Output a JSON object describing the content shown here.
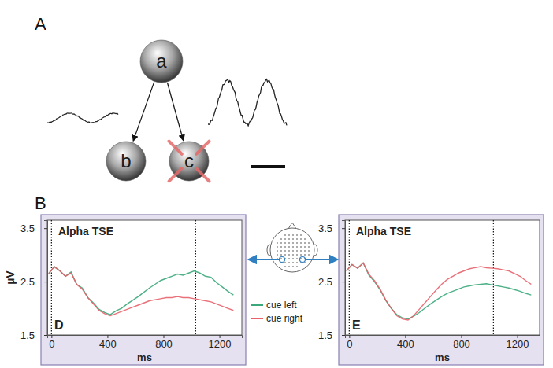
{
  "panel_labels": [
    "A",
    "B"
  ],
  "diagram": {
    "nodes": [
      {
        "label": "a"
      },
      {
        "label": "b"
      },
      {
        "label": "c",
        "lesioned": true
      }
    ],
    "edges": [
      [
        0,
        1
      ],
      [
        0,
        2
      ]
    ]
  },
  "chart_data": [
    {
      "type": "line",
      "label": "D",
      "title": "Alpha TSE",
      "xlabel": "ms",
      "ylabel": "µV",
      "x": [
        -20,
        20,
        60,
        100,
        140,
        180,
        220,
        260,
        300,
        340,
        380,
        420,
        460,
        500,
        540,
        580,
        620,
        660,
        700,
        740,
        780,
        820,
        860,
        900,
        940,
        980,
        1020,
        1060,
        1100,
        1140,
        1180,
        1220,
        1260,
        1300
      ],
      "series": [
        {
          "name": "cue left",
          "color": "#3aa87a",
          "values": [
            2.65,
            2.78,
            2.7,
            2.6,
            2.68,
            2.45,
            2.38,
            2.2,
            2.1,
            1.98,
            1.92,
            1.88,
            1.95,
            2.0,
            2.08,
            2.15,
            2.22,
            2.3,
            2.38,
            2.45,
            2.52,
            2.56,
            2.6,
            2.64,
            2.62,
            2.66,
            2.7,
            2.66,
            2.6,
            2.58,
            2.48,
            2.4,
            2.32,
            2.25
          ]
        },
        {
          "name": "cue right",
          "color": "#e8606a",
          "values": [
            2.65,
            2.78,
            2.7,
            2.6,
            2.66,
            2.45,
            2.36,
            2.2,
            2.08,
            1.96,
            1.9,
            1.86,
            1.9,
            1.94,
            1.98,
            2.02,
            2.06,
            2.1,
            2.14,
            2.16,
            2.18,
            2.2,
            2.2,
            2.22,
            2.2,
            2.2,
            2.18,
            2.16,
            2.14,
            2.12,
            2.08,
            2.04,
            2.0,
            1.96
          ]
        }
      ],
      "xlim": [
        -30,
        1360
      ],
      "ylim": [
        1.5,
        3.65
      ],
      "xticks": [
        0,
        400,
        800,
        1200
      ],
      "yticks": [
        1.5,
        2.5,
        3.5
      ],
      "vlines": [
        0,
        1030
      ],
      "legend": "right"
    },
    {
      "type": "line",
      "label": "E",
      "title": "Alpha TSE",
      "xlabel": "ms",
      "x": [
        -20,
        20,
        60,
        100,
        140,
        180,
        220,
        260,
        300,
        340,
        380,
        420,
        460,
        500,
        540,
        580,
        620,
        660,
        700,
        740,
        780,
        820,
        860,
        900,
        940,
        980,
        1020,
        1060,
        1100,
        1140,
        1180,
        1220,
        1260,
        1300
      ],
      "series": [
        {
          "name": "cue left",
          "color": "#3aa87a",
          "values": [
            2.7,
            2.82,
            2.75,
            2.85,
            2.62,
            2.5,
            2.35,
            2.15,
            2.0,
            1.88,
            1.82,
            1.8,
            1.85,
            1.92,
            2.0,
            2.08,
            2.15,
            2.22,
            2.28,
            2.32,
            2.36,
            2.4,
            2.42,
            2.44,
            2.45,
            2.46,
            2.44,
            2.42,
            2.4,
            2.38,
            2.35,
            2.32,
            2.28,
            2.25
          ]
        },
        {
          "name": "cue right",
          "color": "#e8606a",
          "values": [
            2.7,
            2.82,
            2.75,
            2.85,
            2.64,
            2.52,
            2.36,
            2.16,
            2.0,
            1.86,
            1.8,
            1.78,
            1.86,
            1.98,
            2.1,
            2.22,
            2.34,
            2.45,
            2.54,
            2.6,
            2.66,
            2.7,
            2.74,
            2.76,
            2.78,
            2.76,
            2.75,
            2.74,
            2.72,
            2.7,
            2.65,
            2.6,
            2.52,
            2.45
          ]
        }
      ],
      "xlim": [
        -30,
        1360
      ],
      "ylim": [
        1.5,
        3.65
      ],
      "xticks": [
        0,
        400,
        800,
        1200
      ],
      "yticks": [
        1.5,
        2.5,
        3.5
      ],
      "vlines": [
        0,
        1030
      ]
    }
  ]
}
